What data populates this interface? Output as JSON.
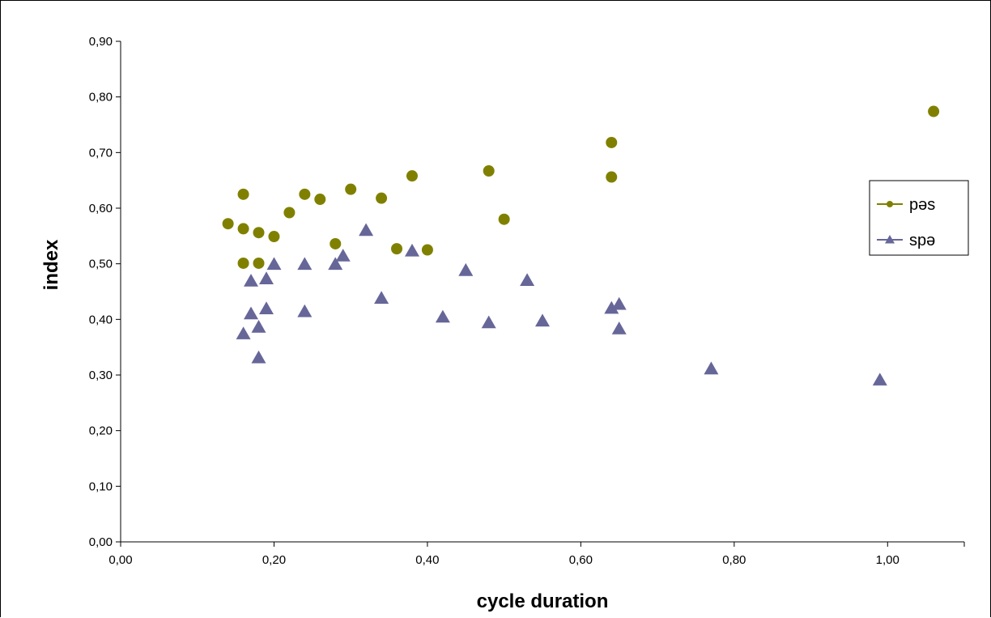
{
  "chart_data": {
    "type": "scatter",
    "title": "",
    "xlabel": "cycle duration",
    "ylabel": "index",
    "xlim": [
      0,
      1.1
    ],
    "ylim": [
      0,
      0.9
    ],
    "x_ticks": [
      "0,00",
      "0,20",
      "0,40",
      "0,60",
      "0,80",
      "1,00"
    ],
    "x_tick_values": [
      0,
      0.2,
      0.4,
      0.6,
      0.8,
      1.0
    ],
    "y_ticks": [
      "0,00",
      "0,10",
      "0,20",
      "0,30",
      "0,40",
      "0,50",
      "0,60",
      "0,70",
      "0,80",
      "0,90"
    ],
    "y_tick_values": [
      0,
      0.1,
      0.2,
      0.3,
      0.4,
      0.5,
      0.6,
      0.7,
      0.8,
      0.9
    ],
    "grid": false,
    "legend_position": "right",
    "series": [
      {
        "name": "pəs",
        "marker": "circle",
        "color": "#808000",
        "points": [
          [
            0.14,
            0.572
          ],
          [
            0.16,
            0.625
          ],
          [
            0.16,
            0.563
          ],
          [
            0.16,
            0.501
          ],
          [
            0.18,
            0.556
          ],
          [
            0.18,
            0.501
          ],
          [
            0.2,
            0.549
          ],
          [
            0.22,
            0.592
          ],
          [
            0.24,
            0.625
          ],
          [
            0.26,
            0.616
          ],
          [
            0.28,
            0.536
          ],
          [
            0.3,
            0.634
          ],
          [
            0.34,
            0.618
          ],
          [
            0.36,
            0.527
          ],
          [
            0.38,
            0.658
          ],
          [
            0.4,
            0.525
          ],
          [
            0.48,
            0.667
          ],
          [
            0.5,
            0.58
          ],
          [
            0.64,
            0.718
          ],
          [
            0.64,
            0.656
          ],
          [
            1.06,
            0.774
          ]
        ]
      },
      {
        "name": "spə",
        "marker": "triangle",
        "color": "#666699",
        "points": [
          [
            0.16,
            0.374
          ],
          [
            0.17,
            0.469
          ],
          [
            0.17,
            0.41
          ],
          [
            0.18,
            0.386
          ],
          [
            0.18,
            0.331
          ],
          [
            0.19,
            0.473
          ],
          [
            0.19,
            0.419
          ],
          [
            0.2,
            0.499
          ],
          [
            0.24,
            0.499
          ],
          [
            0.24,
            0.414
          ],
          [
            0.28,
            0.499
          ],
          [
            0.29,
            0.514
          ],
          [
            0.32,
            0.56
          ],
          [
            0.34,
            0.438
          ],
          [
            0.38,
            0.523
          ],
          [
            0.42,
            0.404
          ],
          [
            0.45,
            0.488
          ],
          [
            0.48,
            0.394
          ],
          [
            0.53,
            0.47
          ],
          [
            0.55,
            0.397
          ],
          [
            0.64,
            0.42
          ],
          [
            0.65,
            0.427
          ],
          [
            0.65,
            0.383
          ],
          [
            0.77,
            0.311
          ],
          [
            0.99,
            0.291
          ]
        ]
      }
    ]
  }
}
